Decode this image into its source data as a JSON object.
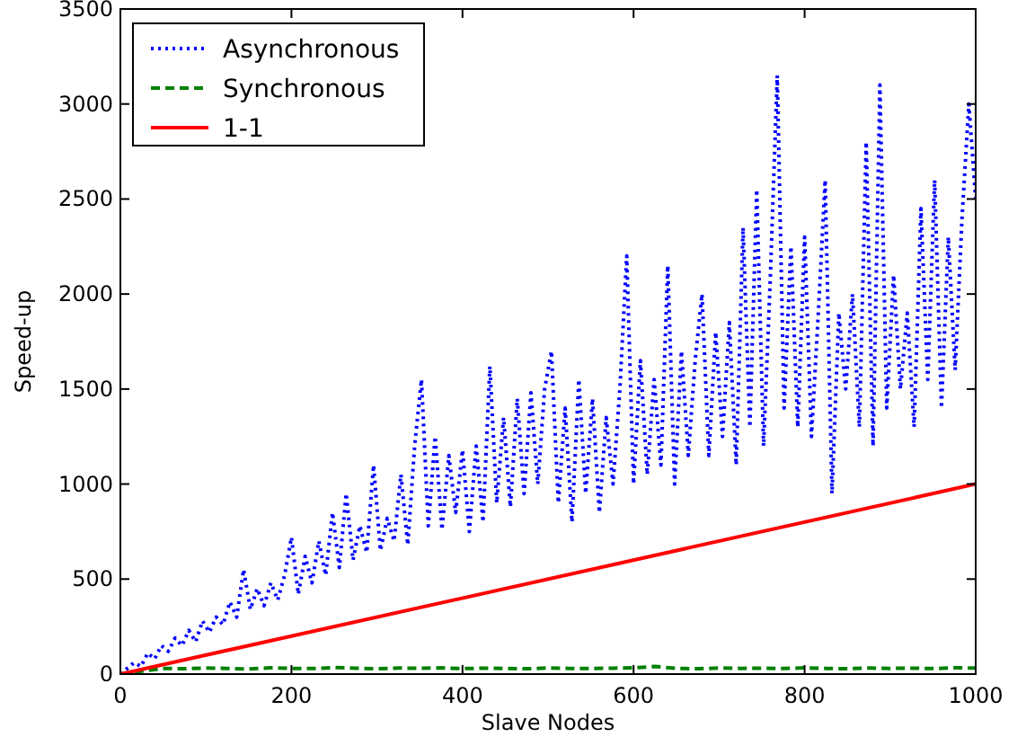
{
  "chart_data": {
    "type": "line",
    "xlabel": "Slave Nodes",
    "ylabel": "Speed-up",
    "xlim": [
      0,
      1000
    ],
    "ylim": [
      0,
      3500
    ],
    "xticks": [
      0,
      200,
      400,
      600,
      800,
      1000
    ],
    "yticks": [
      0,
      500,
      1000,
      1500,
      2000,
      2500,
      3000,
      3500
    ],
    "grid": false,
    "legend": "top left",
    "marker": "none",
    "series": [
      {
        "name": "Asynchronous",
        "color": "#0000ff",
        "line_style": "dotted",
        "x": [
          0,
          8,
          16,
          24,
          32,
          40,
          48,
          56,
          64,
          72,
          80,
          88,
          96,
          104,
          112,
          120,
          128,
          136,
          144,
          152,
          160,
          168,
          176,
          184,
          192,
          200,
          208,
          216,
          224,
          232,
          240,
          248,
          256,
          264,
          272,
          280,
          288,
          296,
          304,
          312,
          320,
          328,
          336,
          344,
          352,
          360,
          368,
          376,
          384,
          392,
          400,
          408,
          416,
          424,
          432,
          440,
          448,
          456,
          464,
          472,
          480,
          488,
          496,
          504,
          512,
          520,
          528,
          536,
          544,
          552,
          560,
          568,
          576,
          584,
          592,
          600,
          608,
          616,
          624,
          632,
          640,
          648,
          656,
          664,
          672,
          680,
          688,
          696,
          704,
          712,
          720,
          728,
          736,
          744,
          752,
          760,
          768,
          776,
          784,
          792,
          800,
          808,
          816,
          824,
          832,
          840,
          848,
          856,
          864,
          872,
          880,
          888,
          896,
          904,
          912,
          920,
          928,
          936,
          944,
          952,
          960,
          968,
          976,
          984,
          992,
          1000
        ],
        "values": [
          0,
          30,
          60,
          40,
          110,
          80,
          150,
          120,
          190,
          150,
          230,
          170,
          280,
          220,
          300,
          260,
          380,
          300,
          550,
          340,
          450,
          360,
          480,
          390,
          520,
          720,
          420,
          620,
          480,
          700,
          520,
          850,
          560,
          950,
          600,
          780,
          640,
          1100,
          650,
          820,
          700,
          1050,
          680,
          1200,
          1550,
          780,
          1250,
          760,
          1150,
          850,
          1180,
          750,
          1200,
          800,
          1620,
          900,
          1350,
          880,
          1450,
          950,
          1480,
          1000,
          1500,
          1700,
          900,
          1400,
          800,
          1550,
          950,
          1450,
          850,
          1350,
          1000,
          1500,
          2200,
          1000,
          1650,
          1050,
          1550,
          1100,
          2150,
          1000,
          1700,
          1150,
          1650,
          2000,
          1150,
          1800,
          1250,
          1850,
          1100,
          2350,
          1300,
          2550,
          1200,
          2100,
          3150,
          1400,
          2250,
          1300,
          2300,
          1250,
          1900,
          2600,
          950,
          1900,
          1500,
          2000,
          1300,
          2800,
          1200,
          3100,
          1400,
          2100,
          1500,
          1900,
          1300,
          2450,
          1550,
          2600,
          1400,
          2300,
          1600,
          2400,
          3000,
          2500
        ]
      },
      {
        "name": "Synchronous",
        "color": "#008000",
        "line_style": "dashed",
        "x": [
          0,
          25,
          50,
          75,
          100,
          125,
          150,
          175,
          200,
          225,
          250,
          275,
          300,
          325,
          350,
          375,
          400,
          425,
          450,
          475,
          500,
          525,
          550,
          575,
          600,
          625,
          650,
          675,
          700,
          725,
          750,
          775,
          800,
          825,
          850,
          875,
          900,
          925,
          950,
          975,
          1000
        ],
        "values": [
          0,
          15,
          30,
          28,
          32,
          30,
          27,
          33,
          30,
          29,
          34,
          31,
          28,
          32,
          30,
          33,
          29,
          31,
          30,
          28,
          32,
          30,
          29,
          31,
          33,
          40,
          30,
          28,
          32,
          30,
          31,
          29,
          33,
          30,
          28,
          32,
          30,
          31,
          29,
          33,
          32
        ]
      },
      {
        "name": "1-1",
        "color": "#ff0000",
        "line_style": "solid",
        "x": [
          0,
          1000
        ],
        "values": [
          0,
          1000
        ]
      }
    ]
  }
}
